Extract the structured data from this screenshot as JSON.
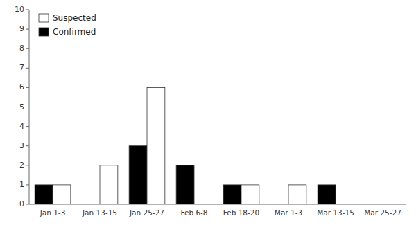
{
  "chart_data": {
    "type": "bar",
    "categories": [
      "Jan 1-3",
      "Jan 13-15",
      "Jan 25-27",
      "Feb 6-8",
      "Feb 18-20",
      "Mar 1-3",
      "Mar 13-15",
      "Mar 25-27"
    ],
    "series": [
      {
        "name": "Confirmed",
        "color": "#000000",
        "values": [
          1,
          0,
          3,
          2,
          1,
          0,
          1,
          0
        ]
      },
      {
        "name": "Suspected",
        "color": "#ffffff",
        "values": [
          1,
          2,
          6,
          0,
          1,
          1,
          0,
          0
        ]
      }
    ],
    "ylim": [
      0,
      10
    ],
    "yticks": [
      0,
      1,
      2,
      3,
      4,
      5,
      6,
      7,
      8,
      9,
      10
    ],
    "grid": false,
    "legend": "upper left"
  }
}
